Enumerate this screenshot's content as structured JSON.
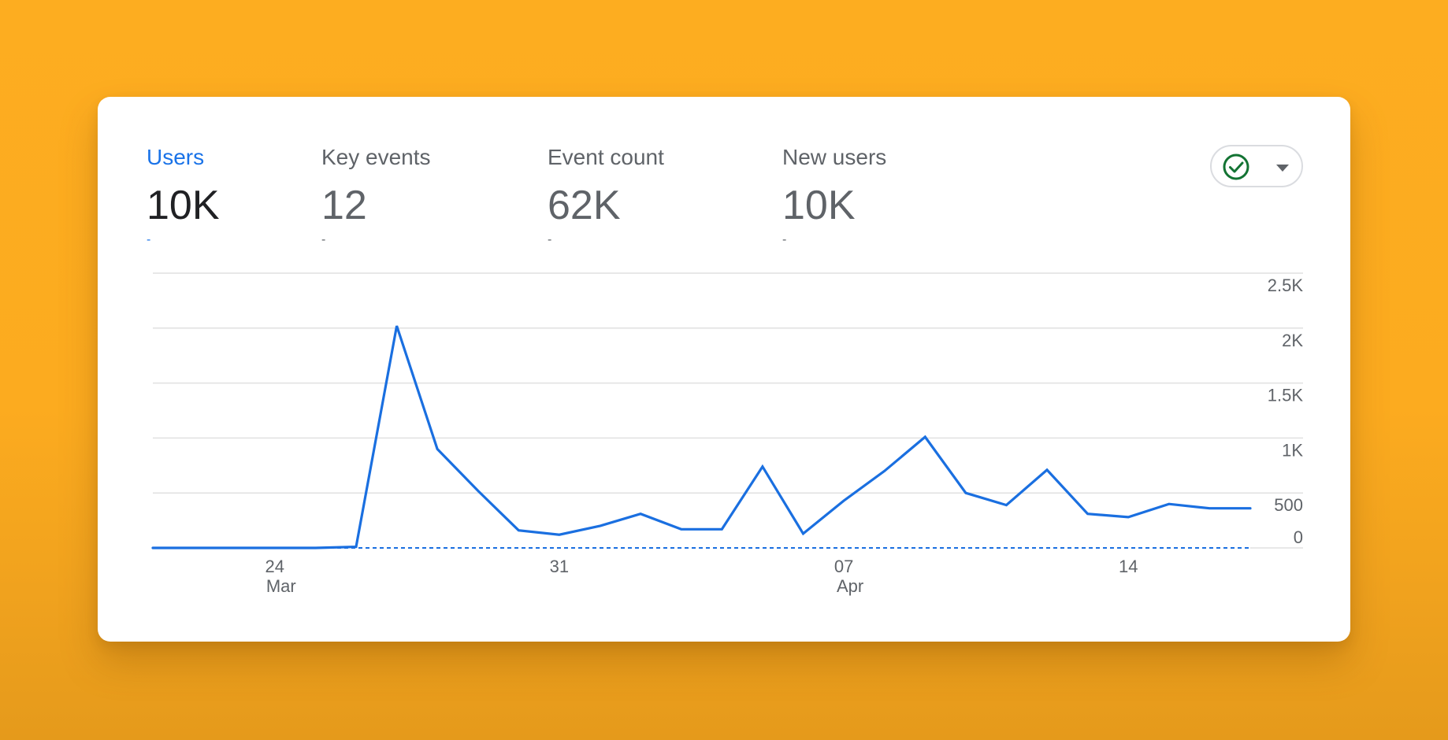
{
  "colors": {
    "accent": "#1a73e8",
    "line": "#1a6fe0",
    "success": "#137333",
    "text_secondary": "#5f6368",
    "text_primary": "#202124",
    "grid": "#e0e0e0"
  },
  "metrics": [
    {
      "label": "Users",
      "value": "10K",
      "delta": "-",
      "active": true
    },
    {
      "label": "Key events",
      "value": "12",
      "delta": "-",
      "active": false
    },
    {
      "label": "Event count",
      "value": "62K",
      "delta": "-",
      "active": false
    },
    {
      "label": "New users",
      "value": "10K",
      "delta": "-",
      "active": false
    }
  ],
  "status": {
    "icon": "check-circle-icon",
    "dropdown_icon": "caret-down-icon"
  },
  "chart_data": {
    "type": "line",
    "x_ticks": [
      {
        "day": "24",
        "month": "Mar"
      },
      {
        "day": "31",
        "month": ""
      },
      {
        "day": "07",
        "month": "Apr"
      },
      {
        "day": "14",
        "month": ""
      }
    ],
    "y_ticks": [
      "2.5K",
      "2K",
      "1.5K",
      "1K",
      "500",
      "0"
    ],
    "ylim": [
      0,
      2500
    ],
    "grid": true,
    "x": [
      "Mar 21",
      "Mar 22",
      "Mar 23",
      "Mar 24",
      "Mar 25",
      "Mar 26",
      "Mar 27",
      "Mar 28",
      "Mar 29",
      "Mar 30",
      "Mar 31",
      "Apr 1",
      "Apr 2",
      "Apr 3",
      "Apr 4",
      "Apr 5",
      "Apr 6",
      "Apr 7",
      "Apr 8",
      "Apr 9",
      "Apr 10",
      "Apr 11",
      "Apr 12",
      "Apr 13",
      "Apr 14",
      "Apr 15",
      "Apr 16",
      "Apr 17"
    ],
    "series": [
      {
        "name": "",
        "values": [
          0,
          0,
          0,
          0,
          0,
          10,
          2020,
          900,
          520,
          160,
          120,
          200,
          310,
          170,
          170,
          740,
          130,
          430,
          700,
          1010,
          500,
          390,
          710,
          310,
          280,
          400,
          360,
          360
        ]
      }
    ],
    "reference_line": {
      "style": "dashed",
      "value": 0
    }
  }
}
